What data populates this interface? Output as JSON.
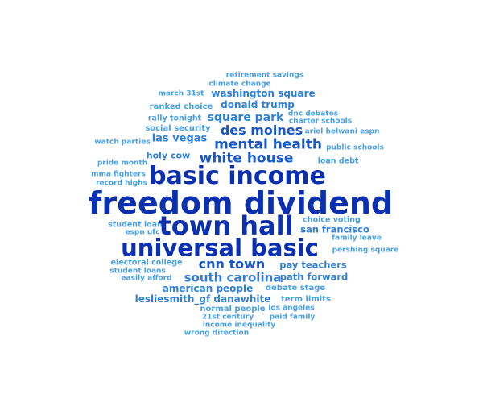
{
  "words": [
    {
      "text": "retirement savings"
    },
    {
      "text": "climate change"
    },
    {
      "text": "march 31st"
    },
    {
      "text": "washington square"
    },
    {
      "text": "ranked choice"
    },
    {
      "text": "donald trump"
    },
    {
      "text": "dnc debates"
    },
    {
      "text": "rally tonight"
    },
    {
      "text": "square park"
    },
    {
      "text": "charter schools"
    },
    {
      "text": "social security"
    },
    {
      "text": "des moines"
    },
    {
      "text": "ariel helwani espn"
    },
    {
      "text": "las vegas"
    },
    {
      "text": "watch parties"
    },
    {
      "text": "mental health"
    },
    {
      "text": "public schools"
    },
    {
      "text": "holy cow"
    },
    {
      "text": "white house"
    },
    {
      "text": "pride month"
    },
    {
      "text": "loan debt"
    },
    {
      "text": "basic income"
    },
    {
      "text": "mma fighters"
    },
    {
      "text": "record highs"
    },
    {
      "text": "freedom dividend"
    },
    {
      "text": "student loan"
    },
    {
      "text": "town hall"
    },
    {
      "text": "choice voting"
    },
    {
      "text": "espn ufc"
    },
    {
      "text": "san francisco"
    },
    {
      "text": "family leave"
    },
    {
      "text": "universal basic"
    },
    {
      "text": "pershing square"
    },
    {
      "text": "electoral college"
    },
    {
      "text": "cnn town"
    },
    {
      "text": "pay teachers"
    },
    {
      "text": "student loans"
    },
    {
      "text": "easily afford"
    },
    {
      "text": "south carolina"
    },
    {
      "text": "path forward"
    },
    {
      "text": "american people"
    },
    {
      "text": "debate stage"
    },
    {
      "text": "lesliesmith_gf danawhite"
    },
    {
      "text": "term limits"
    },
    {
      "text": "normal people"
    },
    {
      "text": "los angeles"
    },
    {
      "text": "21st century"
    },
    {
      "text": "paid family"
    },
    {
      "text": "income inequality"
    },
    {
      "text": "wrong direction"
    }
  ]
}
